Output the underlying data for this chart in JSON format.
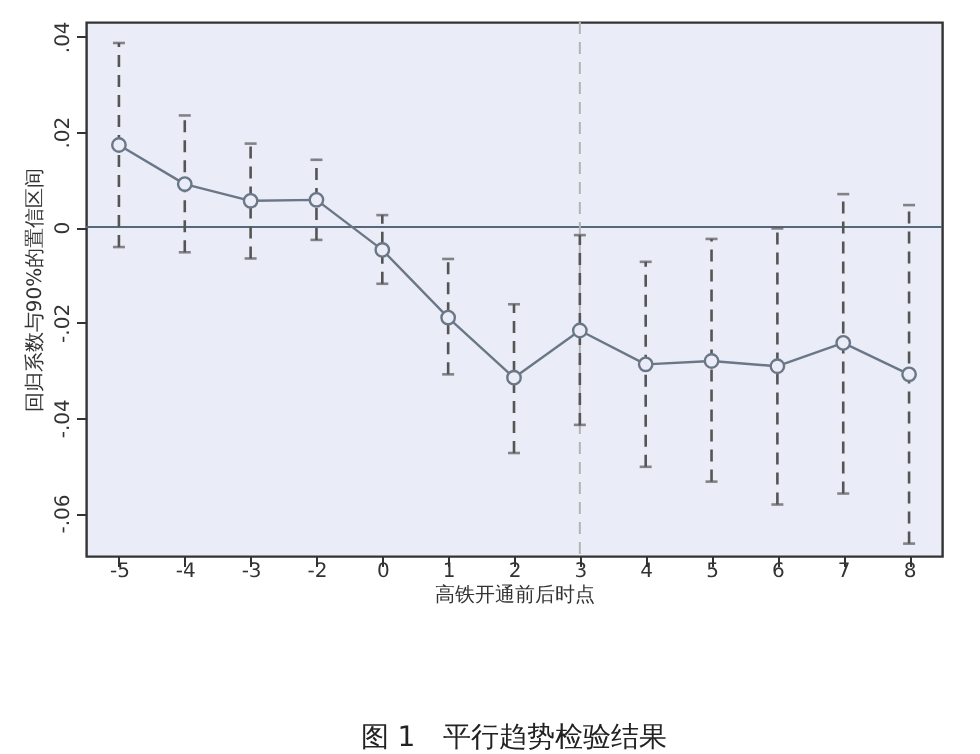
{
  "chart_data": {
    "type": "line",
    "title": "图 1　平行趋势检验结果",
    "xlabel": "高铁开通前后时点",
    "ylabel": "回归系数与90%的置信区间",
    "categories": [
      "-5",
      "-4",
      "-3",
      "-2",
      "0",
      "1",
      "2",
      "3",
      "4",
      "5",
      "6",
      "7",
      "8"
    ],
    "series": [
      {
        "color": "#6b7786",
        "values": [
          0.0172,
          0.009,
          0.0055,
          0.0057,
          -0.0048,
          -0.019,
          -0.0316,
          -0.0217,
          -0.0288,
          -0.0281,
          -0.0292,
          -0.0243,
          -0.0309
        ],
        "errors": [
          [
            -0.0042,
            0.0386
          ],
          [
            -0.0053,
            0.0234
          ],
          [
            -0.0066,
            0.0175
          ],
          [
            -0.0027,
            0.0141
          ],
          [
            -0.0119,
            0.0025
          ],
          [
            -0.0309,
            -0.0067
          ],
          [
            -0.0474,
            -0.0162
          ],
          [
            -0.0415,
            -0.0017
          ],
          [
            -0.0503,
            -0.0073
          ],
          [
            -0.0534,
            -0.0025
          ],
          [
            -0.0582,
            -0.0003
          ],
          [
            -0.0559,
            0.0069
          ],
          [
            -0.0664,
            0.0046
          ]
        ]
      }
    ],
    "ylim": [
      -0.069,
      0.043
    ],
    "yticks": [
      {
        "value": -0.06,
        "label": "-.06"
      },
      {
        "value": -0.04,
        "label": "-.04"
      },
      {
        "value": -0.02,
        "label": "-.02"
      },
      {
        "value": 0,
        "label": "0"
      },
      {
        "value": 0.02,
        "label": ".02"
      },
      {
        "value": 0.04,
        "label": ".04"
      }
    ],
    "ref_lines": [
      {
        "axis": "y",
        "value": 0,
        "color": "#56697a",
        "line_style": "solid"
      },
      {
        "axis": "x",
        "value": "3",
        "color": "#b4b4b4",
        "line_style": "dashed"
      }
    ],
    "marker": "circle",
    "line_style": "solid",
    "grid": false
  }
}
